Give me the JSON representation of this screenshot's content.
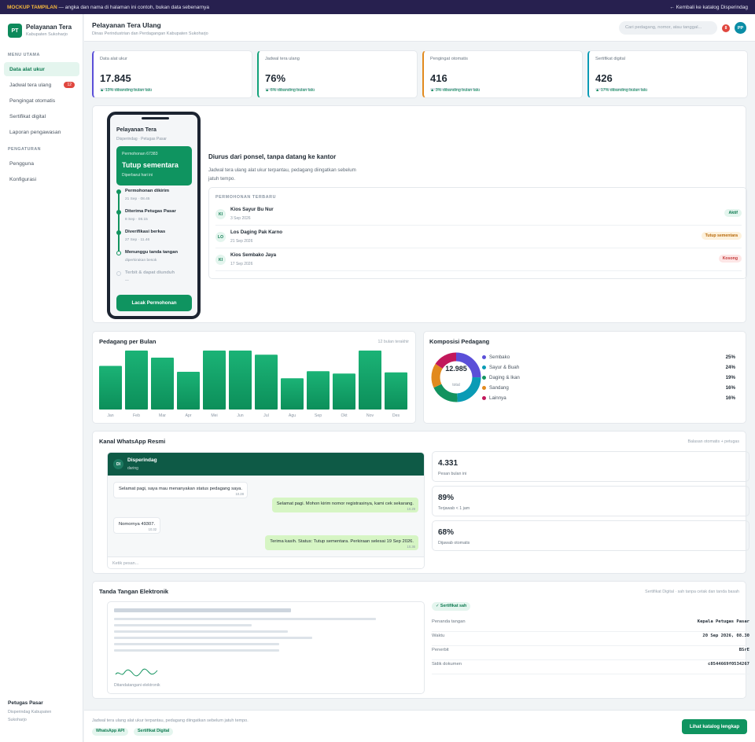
{
  "banner": {
    "label": "MOCKUP TAMPILAN",
    "text": " — angka dan nama di halaman ini contoh, bukan data sebenarnya",
    "back": "← Kembali ke katalog Disperindag"
  },
  "sidebar": {
    "logo": "PT",
    "title": "Pelayanan Tera",
    "subtitle": "Kabupaten Sukoharjo",
    "section_main": "MENU UTAMA",
    "items": [
      {
        "label": "Data alat ukur"
      },
      {
        "label": "Jadwal tera ulang",
        "badge": "12"
      },
      {
        "label": "Pengingat otomatis"
      },
      {
        "label": "Sertifikat digital"
      },
      {
        "label": "Laporan pengawasan"
      }
    ],
    "section_settings": "PENGATURAN",
    "settings": [
      {
        "label": "Pengguna"
      },
      {
        "label": "Konfigurasi"
      }
    ],
    "user_name": "Petugas Pasar",
    "user_sub": "Disperindag Kabupaten Sukoharjo"
  },
  "header": {
    "title": "Pelayanan Tera Ulang",
    "subtitle": "Dinas Perindustrian dan Perdagangan Kabupaten Sukoharjo",
    "search_placeholder": "Cari pedagang, nomor, atau tanggal...",
    "notif_count": "8",
    "avatar": "PP"
  },
  "kpis": [
    {
      "label": "Data alat ukur",
      "value": "17.845",
      "delta": "▲ 13% dibanding bulan lalu",
      "accent": "#5b4fd8"
    },
    {
      "label": "Jadwal tera ulang",
      "value": "76%",
      "delta": "▲ 6% dibanding bulan lalu",
      "accent": "#13a27a"
    },
    {
      "label": "Pengingat otomatis",
      "value": "416",
      "delta": "▲ 3% dibanding bulan lalu",
      "accent": "#e28a1e"
    },
    {
      "label": "Sertifikat digital",
      "value": "426",
      "delta": "▲ 17% dibanding bulan lalu",
      "accent": "#0a9bb5"
    }
  ],
  "phone": {
    "title": "Pelayanan Tera",
    "subtitle": "Disperindag · Petugas Pasar",
    "card_number": "Permohonan 67383",
    "card_status": "Tutup sementara",
    "card_updated": "Diperbarui hari ini",
    "steps": [
      {
        "title": "Permohonan dikirim",
        "sub": "21 Sep · 08.45"
      },
      {
        "title": "Diterima Petugas Pasar",
        "sub": "8 Sep · 08.15"
      },
      {
        "title": "Diverifikasi berkas",
        "sub": "27 Sep · 11.46"
      },
      {
        "title": "Menunggu tanda tangan",
        "sub": "diperkirakan besok"
      },
      {
        "title": "Terbit & dapat diunduh",
        "sub": "—"
      }
    ],
    "button": "Lacak Permohonan"
  },
  "hero": {
    "heading": "Diurus dari ponsel, tanpa datang ke kantor",
    "desc": "Jadwal tera ulang alat ukur terpantau, pedagang diingatkan sebelum jatuh tempo."
  },
  "requests": {
    "heading": "PERMOHONAN TERBARU",
    "rows": [
      {
        "initials": "KI",
        "name": "Kios Sayur Bu Nur",
        "date": "3 Sep 2026",
        "status": "Aktif"
      },
      {
        "initials": "LO",
        "name": "Los Daging Pak Karno",
        "date": "21 Sep 2026",
        "status": "Tutup sementara"
      },
      {
        "initials": "KI",
        "name": "Kios Sembako Jaya",
        "date": "17 Sep 2026",
        "status": "Kosong"
      }
    ]
  },
  "bar_panel": {
    "title": "Pedagang per Bulan",
    "range": "12 bulan terakhir"
  },
  "donut_panel": {
    "title": "Komposisi Pedagang",
    "total": "12.985",
    "total_label": "total"
  },
  "chart_data": [
    {
      "type": "bar",
      "title": "Pedagang per Bulan",
      "categories": [
        "Jan",
        "Feb",
        "Mar",
        "Apr",
        "Mei",
        "Jun",
        "Jul",
        "Agu",
        "Sep",
        "Okt",
        "Nov",
        "Des"
      ],
      "values": [
        74,
        100,
        88,
        64,
        100,
        100,
        93,
        53,
        65,
        61,
        100,
        63
      ],
      "ylim": [
        0,
        100
      ],
      "grid": false,
      "color": "#14a26b"
    },
    {
      "type": "pie",
      "title": "Komposisi Pedagang",
      "categories": [
        "Sembako",
        "Sayur & Buah",
        "Daging & Ikan",
        "Sandang",
        "Lainnya"
      ],
      "values": [
        25,
        24,
        19,
        16,
        16
      ],
      "value_labels": [
        "25%",
        "24%",
        "19%",
        "16%",
        "16%"
      ],
      "colors": [
        "#5b4fd8",
        "#0a9bb5",
        "#13935f",
        "#e28a1e",
        "#c2185b"
      ]
    }
  ],
  "whatsapp": {
    "title": "Kanal WhatsApp Resmi",
    "right": "Balasan otomatis + petugas",
    "contact_initials": "DI",
    "contact": "Disperindag",
    "status": "daring",
    "messages": [
      {
        "dir": "in",
        "text": "Selamat pagi, saya mau menanyakan status pedagang saya.",
        "time": "10.28"
      },
      {
        "dir": "out",
        "text": "Selamat pagi. Mohon kirim nomor registrasinya, kami cek sekarang.",
        "time": "10.29"
      },
      {
        "dir": "in",
        "text": "Nomornya 49307.",
        "time": "10.32"
      },
      {
        "dir": "out",
        "text": "Terima kasih. Status: Tutup sementara. Perkiraan selesai 19 Sep 2026.",
        "time": "10.36"
      }
    ],
    "input_placeholder": "Ketik pesan...",
    "stats": [
      {
        "value": "4.331",
        "label": "Pesan bulan ini"
      },
      {
        "value": "89%",
        "label": "Terjawab < 1 jam"
      },
      {
        "value": "68%",
        "label": "Dijawab otomatis"
      }
    ]
  },
  "signature": {
    "title": "Tanda Tangan Elektronik",
    "right": "Sertifikat Digital · sah tanpa cetak dan tanda basah",
    "caption": "Ditandatangani elektronik",
    "ok": "✓ Sertifikat sah",
    "meta": [
      {
        "label": "Penanda tangan",
        "value": "Kepala Petugas Pasar"
      },
      {
        "label": "Waktu",
        "value": "20 Sep 2026, 08.30"
      },
      {
        "label": "Penerbit",
        "value": "BSrE"
      },
      {
        "label": "Sidik dokumen",
        "value": "c8544669f0534267"
      }
    ]
  },
  "footer": {
    "text": "Jadwal tera ulang alat ukur terpantau, pedagang diingatkan sebelum jatuh tempo.",
    "chips": [
      "WhatsApp API",
      "Sertifikat Digital"
    ],
    "button": "Lihat katalog lengkap"
  }
}
